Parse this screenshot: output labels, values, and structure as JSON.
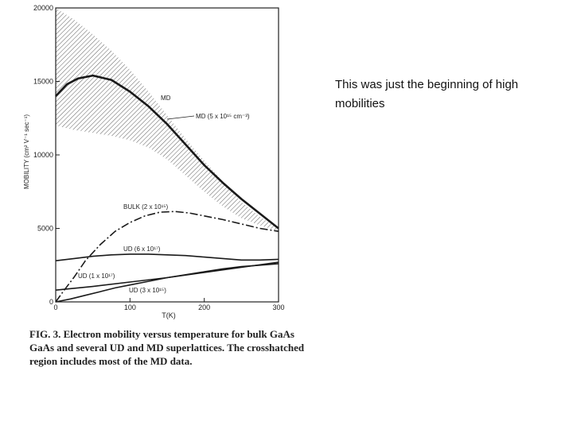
{
  "chart_data": {
    "type": "line",
    "ylabel": "MOBILITY (cm² V⁻¹ sec⁻¹)",
    "xlabel": "T(K)",
    "xlim": [
      0,
      300
    ],
    "ylim": [
      0,
      20000
    ],
    "xticks": [
      "0",
      "100",
      "200",
      "300"
    ],
    "xtick_values": [
      0,
      100,
      200,
      300
    ],
    "yticks": [
      "0",
      "5000",
      "10000",
      "15000",
      "20000"
    ],
    "ytick_values": [
      0,
      5000,
      10000,
      15000,
      20000
    ],
    "band": {
      "label": "MD (5 x 10¹⁵ cm⁻³)",
      "x": [
        0,
        25,
        50,
        75,
        100,
        125,
        150,
        175,
        200,
        225,
        250,
        275,
        300
      ],
      "upper": [
        20000,
        19200,
        18200,
        17100,
        15800,
        14300,
        12700,
        11100,
        9600,
        8200,
        6800,
        5800,
        5000
      ],
      "lower": [
        12000,
        11700,
        11500,
        11300,
        11000,
        10500,
        9700,
        8600,
        7500,
        6500,
        5700,
        5200,
        4800
      ]
    },
    "series": [
      {
        "name": "MD",
        "style": "solid-thick",
        "x": [
          0,
          15,
          30,
          50,
          75,
          100,
          125,
          150,
          175,
          200,
          225,
          250,
          275,
          300
        ],
        "y": [
          14000,
          14800,
          15200,
          15400,
          15100,
          14300,
          13300,
          12100,
          10700,
          9300,
          8100,
          7000,
          6000,
          5000
        ]
      },
      {
        "name": "BULK (2 x 10¹⁵)",
        "style": "dash-dot",
        "x": [
          0,
          10,
          25,
          40,
          60,
          80,
          100,
          120,
          140,
          160,
          180,
          200,
          225,
          250,
          275,
          300
        ],
        "y": [
          0,
          700,
          1700,
          2800,
          3900,
          4800,
          5400,
          5850,
          6100,
          6150,
          6050,
          5850,
          5600,
          5300,
          5000,
          4800
        ]
      },
      {
        "name": "UD (6 x 10¹⁷)",
        "style": "solid",
        "x": [
          0,
          25,
          50,
          75,
          100,
          125,
          150,
          175,
          200,
          225,
          250,
          275,
          300
        ],
        "y": [
          2800,
          2950,
          3100,
          3200,
          3250,
          3250,
          3200,
          3150,
          3050,
          2950,
          2850,
          2850,
          2900
        ]
      },
      {
        "name": "UD (1 x 10¹⁷)",
        "style": "solid",
        "x": [
          0,
          50,
          100,
          150,
          200,
          250,
          300
        ],
        "y": [
          800,
          1050,
          1350,
          1650,
          2000,
          2350,
          2700
        ]
      },
      {
        "name": "UD (3 x 10¹⁵)",
        "style": "solid",
        "x": [
          0,
          20,
          40,
          60,
          80,
          100,
          125,
          150,
          175,
          200,
          225,
          250,
          275,
          300
        ],
        "y": [
          0,
          200,
          450,
          700,
          950,
          1150,
          1400,
          1650,
          1850,
          2050,
          2250,
          2400,
          2500,
          2600
        ]
      }
    ],
    "curve_labels": [
      "MD",
      "MD (5 x 10¹⁵ cm⁻³)",
      "BULK (2 x 10¹⁵)",
      "UD (6 x 10¹⁷)",
      "UD (1 x 10¹⁷)",
      "UD (3 x 10¹⁵)"
    ]
  },
  "caption": {
    "line1": "FIG. 3. Electron mobility versus temperature for bulk GaAs",
    "line2": "GaAs and several UD and MD superlattices. The crosshatched",
    "line3": "region includes most of the MD data."
  },
  "note": {
    "line1": "This was just the beginning of high",
    "line2": " mobilities"
  }
}
